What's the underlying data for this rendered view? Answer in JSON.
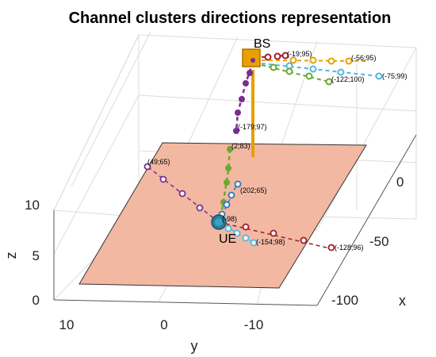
{
  "title": "Channel clusters directions representation",
  "axes": {
    "x_label": "x",
    "y_label": "y",
    "z_label": "z",
    "x_ticks": [
      "0",
      "-50",
      "-100"
    ],
    "y_ticks": [
      "10",
      "0",
      "-10"
    ],
    "z_ticks": [
      "10",
      "5",
      "0"
    ]
  },
  "nodes": {
    "bs_label": "BS",
    "ue_label": "UE"
  },
  "colors": {
    "plane": "#f2b8a2",
    "bs_box": "#e8a000",
    "pole": "#e8a000",
    "ue": "#2a7fa0",
    "purple": "#7b2d8e",
    "green": "#6aa832",
    "blue": "#2f74b8",
    "darkred": "#a01c2a",
    "orange": "#e8a000",
    "lightblue": "#4db8e0"
  },
  "annotations": {
    "a1": "(-19;95)",
    "a2": "(-56;95)",
    "a3": "(-75;99)",
    "a4": "(-122;100)",
    "a5": "(-179;97)",
    "a6": "(2;83)",
    "a7": "(49;65)",
    "a8": "(202;65)",
    "a9": "(-98)",
    "a10": "(-154;98)",
    "a11": "(-128;96)"
  }
}
